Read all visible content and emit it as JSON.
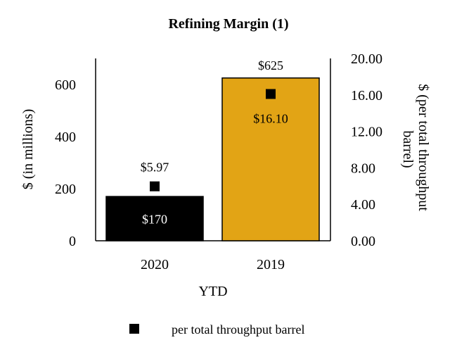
{
  "chart_data": {
    "type": "bar",
    "title": "Refining Margin (1)",
    "xlabel": "YTD",
    "ylabel": "$ (in millions)",
    "y2label": "$ (per total throughput barrel)",
    "categories": [
      "2020",
      "2019"
    ],
    "ylim": [
      0,
      700
    ],
    "y_ticks": [
      "0",
      "200",
      "400",
      "600"
    ],
    "y2lim": [
      0,
      20
    ],
    "y2_ticks": [
      "0.00",
      "4.00",
      "8.00",
      "12.00",
      "16.00",
      "20.00"
    ],
    "series": [
      {
        "name": "Refining Margin",
        "type": "bar",
        "axis": "left",
        "values": [
          170,
          625
        ],
        "labels": [
          "$170",
          "$625"
        ],
        "colors": [
          "#000000",
          "#E2A415"
        ]
      },
      {
        "name": "per total throughput barrel",
        "type": "marker",
        "axis": "right",
        "values": [
          5.97,
          16.1
        ],
        "labels": [
          "$5.97",
          "$16.10"
        ],
        "color": "#000000"
      }
    ],
    "legend": {
      "position": "bottom",
      "entries": [
        "per total throughput barrel"
      ]
    }
  }
}
